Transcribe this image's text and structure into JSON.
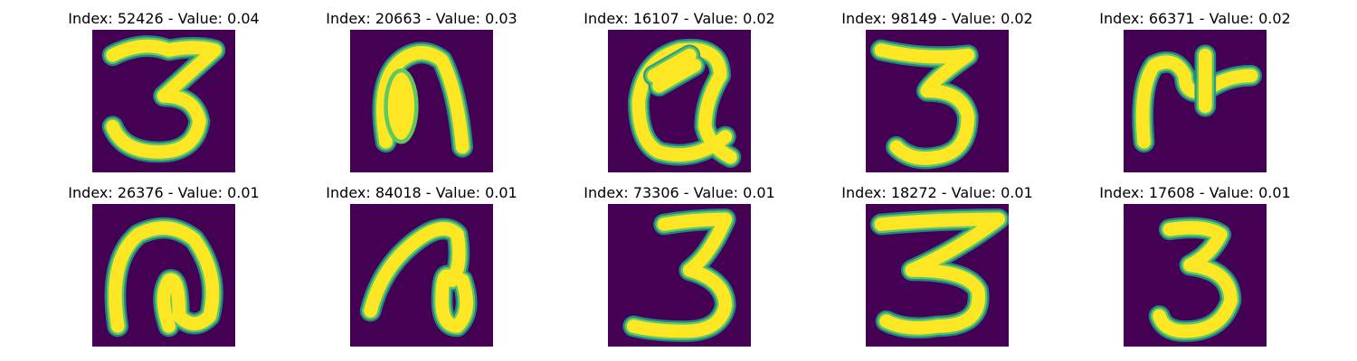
{
  "colors": {
    "background": "#440154",
    "stroke_edge": "#21918c",
    "stroke_mid": "#5ec962",
    "stroke_core": "#fde725"
  },
  "panels": [
    {
      "index": "52426",
      "value": "0.04",
      "title": "Index: 52426 - Value: 0.04"
    },
    {
      "index": "20663",
      "value": "0.03",
      "title": "Index: 20663 - Value: 0.03"
    },
    {
      "index": "16107",
      "value": "0.02",
      "title": "Index: 16107 - Value: 0.02"
    },
    {
      "index": "98149",
      "value": "0.02",
      "title": "Index: 98149 - Value: 0.02"
    },
    {
      "index": "66371",
      "value": "0.02",
      "title": "Index: 66371 - Value: 0.02"
    },
    {
      "index": "26376",
      "value": "0.01",
      "title": "Index: 26376 - Value: 0.01"
    },
    {
      "index": "84018",
      "value": "0.01",
      "title": "Index: 84018 - Value: 0.01"
    },
    {
      "index": "73306",
      "value": "0.01",
      "title": "Index: 73306 - Value: 0.01"
    },
    {
      "index": "18272",
      "value": "0.01",
      "title": "Index: 18272 - Value: 0.01"
    },
    {
      "index": "17608",
      "value": "0.01",
      "title": "Index: 17608 - Value: 0.01"
    }
  ]
}
